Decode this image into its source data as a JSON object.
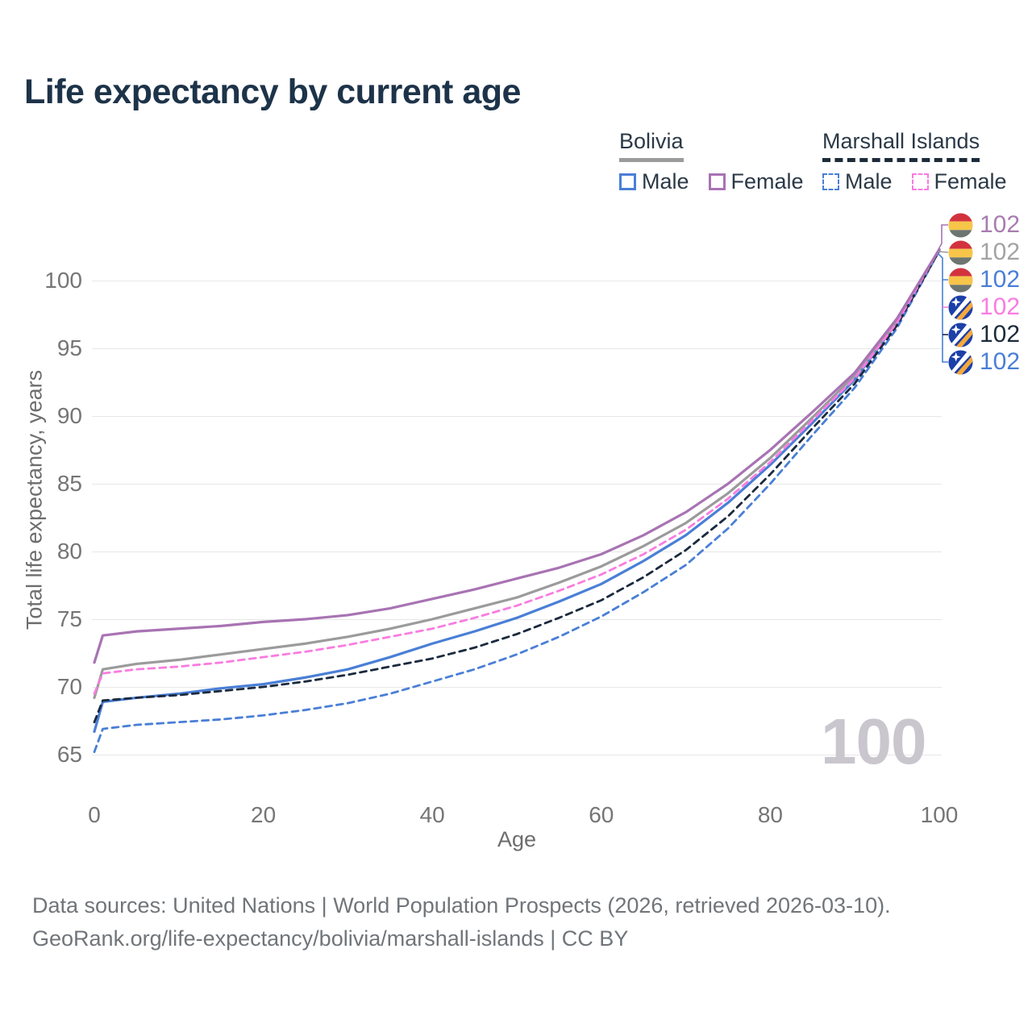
{
  "title": "Life expectancy by current age",
  "legend": {
    "groups": [
      {
        "name": "Bolivia",
        "line_style": "solid",
        "underline_color": "#9b9b9b",
        "items": [
          {
            "label": "Male",
            "color": "#4a7fd6"
          },
          {
            "label": "Female",
            "color": "#a873b3"
          }
        ]
      },
      {
        "name": "Marshall Islands",
        "line_style": "dashed",
        "underline_color": "#1d2b3a",
        "items": [
          {
            "label": "Male",
            "color": "#4a7fd6"
          },
          {
            "label": "Female",
            "color": "#f97ce1"
          }
        ]
      }
    ]
  },
  "end_labels": [
    {
      "flag": "bolivia",
      "series": "Bolivia Female",
      "value": "102",
      "color": "#a87cb0"
    },
    {
      "flag": "bolivia",
      "series": "Bolivia Both sexes",
      "value": "102",
      "color": "#a3a3a3"
    },
    {
      "flag": "bolivia",
      "series": "Bolivia Male",
      "value": "102",
      "color": "#4a7fd6"
    },
    {
      "flag": "marshall-islands",
      "series": "Marshall Islands Female",
      "value": "102",
      "color": "#f97ce1"
    },
    {
      "flag": "marshall-islands",
      "series": "Marshall Islands Both sexes",
      "value": "102",
      "color": "#1d2b3a"
    },
    {
      "flag": "marshall-islands",
      "series": "Marshall Islands Male",
      "value": "102",
      "color": "#4a7fd6"
    }
  ],
  "watermark": "100",
  "footer": {
    "line1": "Data sources: United Nations | World Population Prospects (2026, retrieved 2026-03-10).",
    "line2": "GeoRank.org/life-expectancy/bolivia/marshall-islands | CC BY"
  },
  "chart_data": {
    "type": "line",
    "title": "Life expectancy by current age",
    "xlabel": "Age",
    "ylabel": "Total life expectancy, years",
    "x_ticks": [
      0,
      20,
      40,
      60,
      80,
      100
    ],
    "y_ticks": [
      65,
      70,
      75,
      80,
      85,
      90,
      95,
      100
    ],
    "xlim": [
      0,
      100
    ],
    "ylim": [
      64,
      103
    ],
    "grid": true,
    "legend_position": "top-right",
    "x": [
      0,
      1,
      5,
      10,
      15,
      20,
      25,
      30,
      35,
      40,
      45,
      50,
      55,
      60,
      65,
      70,
      75,
      80,
      85,
      90,
      95,
      100
    ],
    "series": [
      {
        "name": "Bolivia Male",
        "country": "Bolivia",
        "sex": "Male",
        "color": "#4a7fd6",
        "dash": null,
        "values": [
          66.7,
          68.9,
          69.2,
          69.5,
          69.9,
          70.2,
          70.7,
          71.3,
          72.2,
          73.2,
          74.1,
          75.1,
          76.3,
          77.6,
          79.3,
          81.2,
          83.6,
          86.4,
          89.5,
          92.7,
          96.9,
          102.3
        ]
      },
      {
        "name": "Bolivia Both sexes",
        "country": "Bolivia",
        "sex": "Both",
        "color": "#9b9b9b",
        "dash": null,
        "values": [
          69.2,
          71.3,
          71.7,
          72.0,
          72.4,
          72.8,
          73.2,
          73.7,
          74.3,
          75.0,
          75.8,
          76.6,
          77.7,
          78.9,
          80.4,
          82.1,
          84.3,
          86.9,
          89.9,
          93.0,
          97.0,
          102.3
        ]
      },
      {
        "name": "Marshall Islands Male",
        "country": "Marshall Islands",
        "sex": "Male",
        "color": "#4a7fd6",
        "dash": "8 6",
        "values": [
          65.2,
          66.9,
          67.2,
          67.4,
          67.6,
          67.9,
          68.3,
          68.8,
          69.5,
          70.4,
          71.3,
          72.4,
          73.7,
          75.2,
          77.0,
          79.0,
          81.7,
          85.0,
          88.6,
          92.1,
          96.5,
          102.2
        ]
      },
      {
        "name": "Marshall Islands Both sexes",
        "country": "Marshall Islands",
        "sex": "Both",
        "color": "#1b2a3e",
        "dash": "8 6",
        "values": [
          67.4,
          69.0,
          69.2,
          69.4,
          69.7,
          70.0,
          70.4,
          70.9,
          71.5,
          72.1,
          72.9,
          73.9,
          75.1,
          76.4,
          78.1,
          80.1,
          82.6,
          85.7,
          89.1,
          92.4,
          96.7,
          102.2
        ]
      },
      {
        "name": "Marshall Islands Female",
        "country": "Marshall Islands",
        "sex": "Female",
        "color": "#f97ce1",
        "dash": "8 6",
        "values": [
          69.5,
          71.0,
          71.3,
          71.5,
          71.8,
          72.2,
          72.6,
          73.1,
          73.7,
          74.3,
          75.1,
          76.0,
          77.1,
          78.3,
          79.8,
          81.6,
          83.9,
          86.6,
          89.7,
          92.8,
          96.9,
          102.3
        ]
      },
      {
        "name": "Bolivia Female",
        "country": "Bolivia",
        "sex": "Female",
        "color": "#a873b3",
        "dash": null,
        "values": [
          71.8,
          73.8,
          74.1,
          74.3,
          74.5,
          74.8,
          75.0,
          75.3,
          75.8,
          76.5,
          77.2,
          78.0,
          78.8,
          79.8,
          81.2,
          82.9,
          85.0,
          87.5,
          90.3,
          93.2,
          97.2,
          102.3
        ]
      }
    ]
  }
}
